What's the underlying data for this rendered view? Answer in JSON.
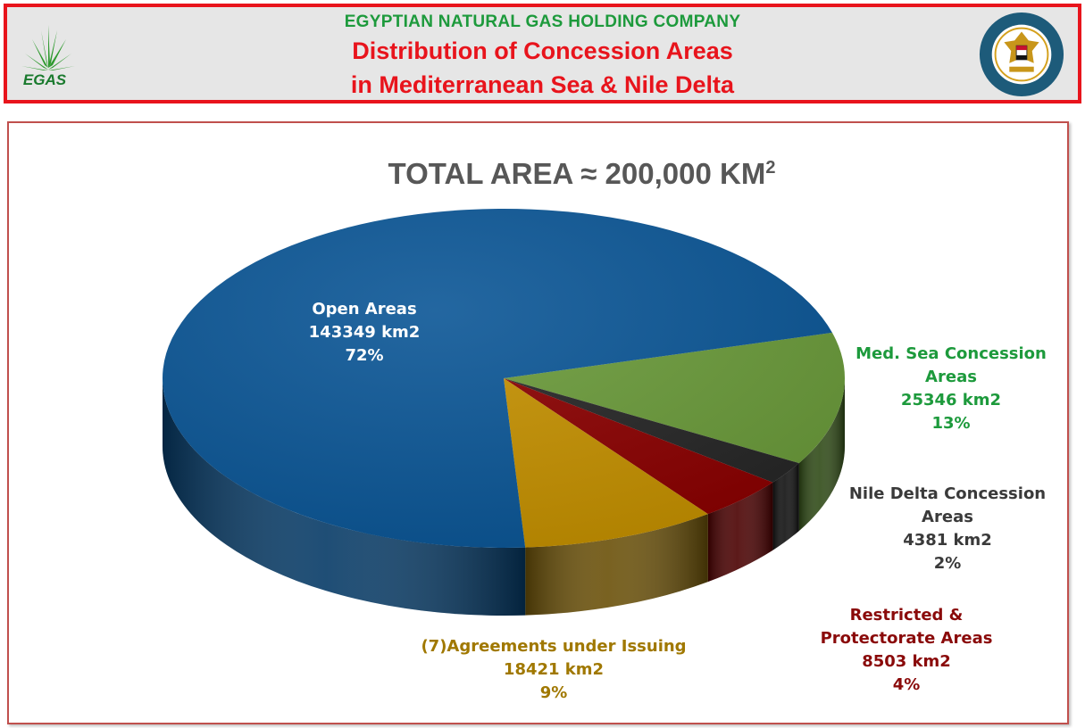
{
  "header": {
    "company": "EGYPTIAN  NATURAL GAS HOLDING COMPANY",
    "title_line1": "Distribution of Concession Areas",
    "title_line2": "in Mediterranean Sea & Nile Delta",
    "logo_text": "EGAS"
  },
  "colors": {
    "header_red": "#e8141c",
    "company_green": "#1d9a3c",
    "open_areas": "#0b5696",
    "med_sea": "#6a9a3a",
    "nile_delta": "#262626",
    "restricted": "#8a0000",
    "agreements": "#c49000"
  },
  "chart_data": {
    "type": "pie",
    "title_main": "TOTAL AREA ≈ 200,000 KM",
    "title_sup": "2",
    "slices": [
      {
        "name": "Open Areas",
        "value_text": "143349 km2",
        "percent_text": "72%",
        "value": 143349,
        "color": "#0b5696",
        "side": "#063a66",
        "label_color": "#ffffff"
      },
      {
        "name": "Med. Sea Concession Areas",
        "value_text": "25346 km2",
        "percent_text": "13%",
        "value": 25346,
        "color": "#6a9a3a",
        "side": "#2f4a16",
        "label_color": "#1d9a3c"
      },
      {
        "name": "Nile Delta Concession Areas",
        "value_text": "4381 km2",
        "percent_text": "2%",
        "value": 4381,
        "color": "#262626",
        "side": "#0f0f0f",
        "label_color": "#3a3a3a"
      },
      {
        "name": "Restricted & Protectorate Areas",
        "value_text": "8503 km2",
        "percent_text": "4%",
        "value": 8503,
        "color": "#8a0000",
        "side": "#4a0000",
        "label_color": "#8a0a0a"
      },
      {
        "name": "(7)Agreements under Issuing",
        "value_text": "18421 km2",
        "percent_text": "9%",
        "value": 18421,
        "color": "#c49000",
        "side": "#6a5008",
        "label_color": "#a07800"
      }
    ]
  }
}
